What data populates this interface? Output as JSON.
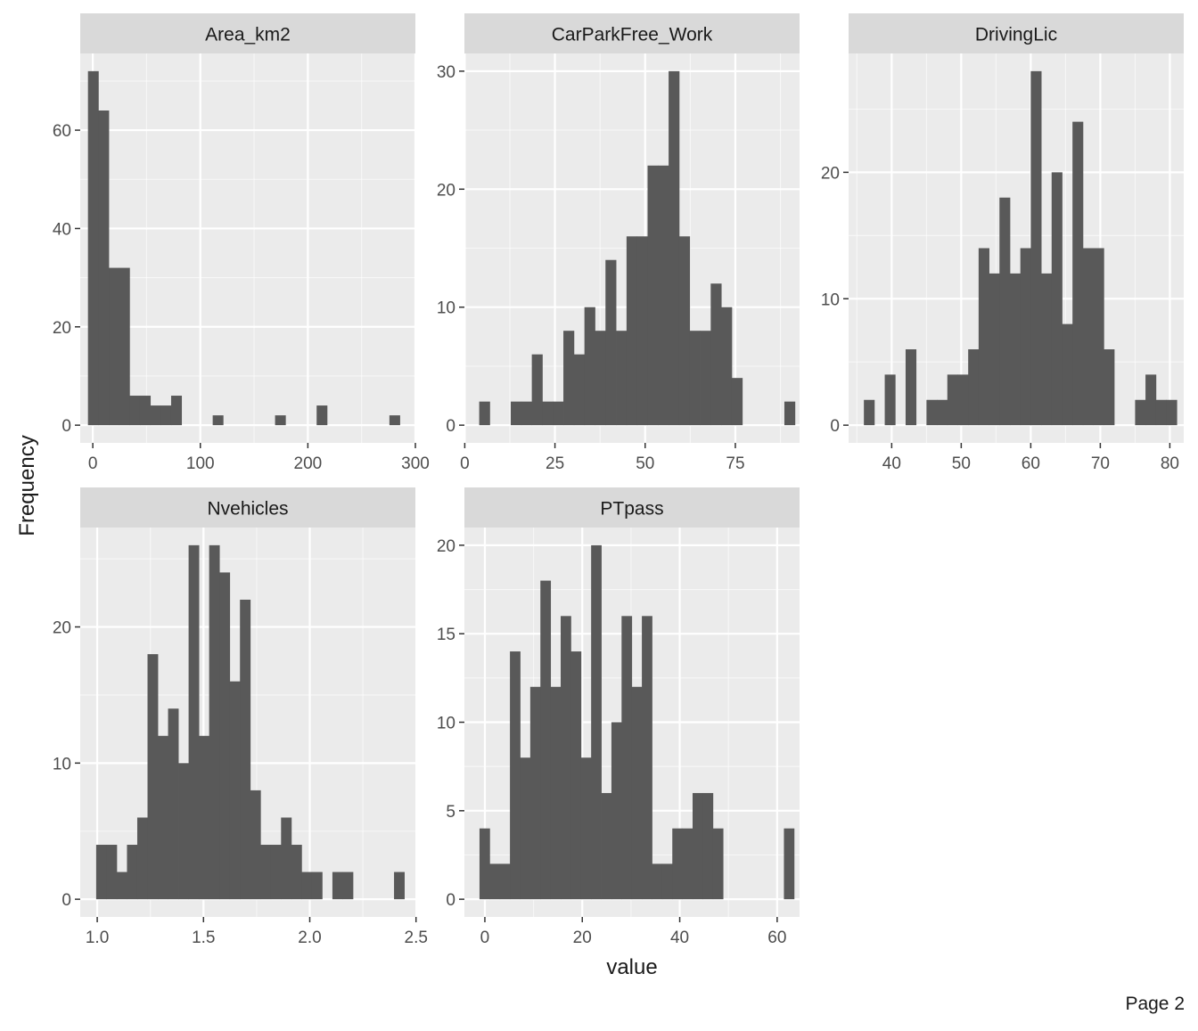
{
  "figure": {
    "ylabel": "Frequency",
    "xlabel": "value",
    "page_label": "Page 2",
    "colors": {
      "panel_bg": "#ebebeb",
      "grid_major": "#ffffff",
      "bar": "#595959",
      "strip_bg": "#d9d9d9",
      "text": "#1a1a1a",
      "tick_text": "#4d4d4d"
    }
  },
  "chart_data": [
    {
      "type": "bar",
      "title": "Area_km2",
      "bins": {
        "start": -4.5,
        "width": 9.667
      },
      "values": [
        72,
        64,
        32,
        32,
        6,
        6,
        4,
        4,
        6,
        0,
        0,
        0,
        2,
        0,
        0,
        0,
        0,
        0,
        2,
        0,
        0,
        0,
        4,
        0,
        0,
        0,
        0,
        0,
        0,
        2
      ],
      "xlim": [
        -11.7,
        300
      ],
      "ylim": [
        -3.6,
        75.6
      ],
      "xticks": [
        0,
        100,
        200,
        300
      ],
      "yticks": [
        0,
        20,
        40,
        60
      ],
      "xticklabels": [
        "0",
        "100",
        "200",
        "300"
      ],
      "yticklabels": [
        "0",
        "20",
        "40",
        "60"
      ]
    },
    {
      "type": "bar",
      "title": "CarParkFree_Work",
      "bins": {
        "start": 4.0,
        "width": 2.917
      },
      "values": [
        2,
        0,
        0,
        2,
        2,
        6,
        2,
        2,
        8,
        6,
        10,
        8,
        14,
        8,
        16,
        16,
        22,
        22,
        30,
        16,
        8,
        8,
        12,
        10,
        4,
        0,
        0,
        0,
        0,
        2
      ],
      "xlim": [
        -0.1,
        92.8
      ],
      "ylim": [
        -1.5,
        31.5
      ],
      "xticks": [
        0,
        25,
        50,
        75
      ],
      "yticks": [
        0,
        10,
        20,
        30
      ],
      "xticklabels": [
        "0",
        "25",
        "50",
        "75"
      ],
      "yticklabels": [
        "0",
        "10",
        "20",
        "30"
      ]
    },
    {
      "type": "bar",
      "title": "DrivingLic",
      "bins": {
        "start": 36.0,
        "width": 1.5
      },
      "values": [
        2,
        0,
        4,
        0,
        6,
        0,
        2,
        2,
        4,
        4,
        6,
        14,
        12,
        18,
        12,
        14,
        28,
        12,
        20,
        8,
        24,
        14,
        14,
        6,
        0,
        0,
        2,
        4,
        2,
        2
      ],
      "xlim": [
        33.8,
        82.0
      ],
      "ylim": [
        -1.4,
        29.4
      ],
      "xticks": [
        40,
        50,
        60,
        70,
        80
      ],
      "yticks": [
        0,
        10,
        20
      ],
      "xticklabels": [
        "40",
        "50",
        "60",
        "70",
        "80"
      ],
      "yticklabels": [
        "0",
        "10",
        "20"
      ]
    },
    {
      "type": "bar",
      "title": "Nvehicles",
      "bins": {
        "start": 0.995,
        "width": 0.04833
      },
      "values": [
        4,
        4,
        2,
        4,
        6,
        18,
        12,
        14,
        10,
        26,
        12,
        26,
        24,
        16,
        22,
        8,
        4,
        4,
        6,
        4,
        2,
        2,
        0,
        2,
        2,
        0,
        0,
        0,
        0,
        2
      ],
      "xlim": [
        0.92,
        2.497
      ],
      "ylim": [
        -1.3,
        27.3
      ],
      "xticks": [
        1.0,
        1.5,
        2.0,
        2.5
      ],
      "yticks": [
        0,
        10,
        20
      ],
      "xticklabels": [
        "1.0",
        "1.5",
        "2.0",
        "2.5"
      ],
      "yticklabels": [
        "0",
        "10",
        "20"
      ]
    },
    {
      "type": "bar",
      "title": "PTpass",
      "bins": {
        "start": -1.1,
        "width": 2.083
      },
      "values": [
        4,
        2,
        2,
        14,
        8,
        12,
        18,
        12,
        16,
        14,
        8,
        20,
        6,
        10,
        16,
        12,
        16,
        2,
        2,
        4,
        4,
        6,
        6,
        4,
        0,
        0,
        0,
        0,
        0,
        0,
        4
      ],
      "xlim": [
        -4.2,
        64.6
      ],
      "ylim": [
        -1.0,
        21.0
      ],
      "xticks": [
        0,
        20,
        40,
        60
      ],
      "yticks": [
        0,
        5,
        10,
        15,
        20
      ],
      "xticklabels": [
        "0",
        "20",
        "40",
        "60"
      ],
      "yticklabels": [
        "0",
        "5",
        "10",
        "15",
        "20"
      ]
    }
  ]
}
